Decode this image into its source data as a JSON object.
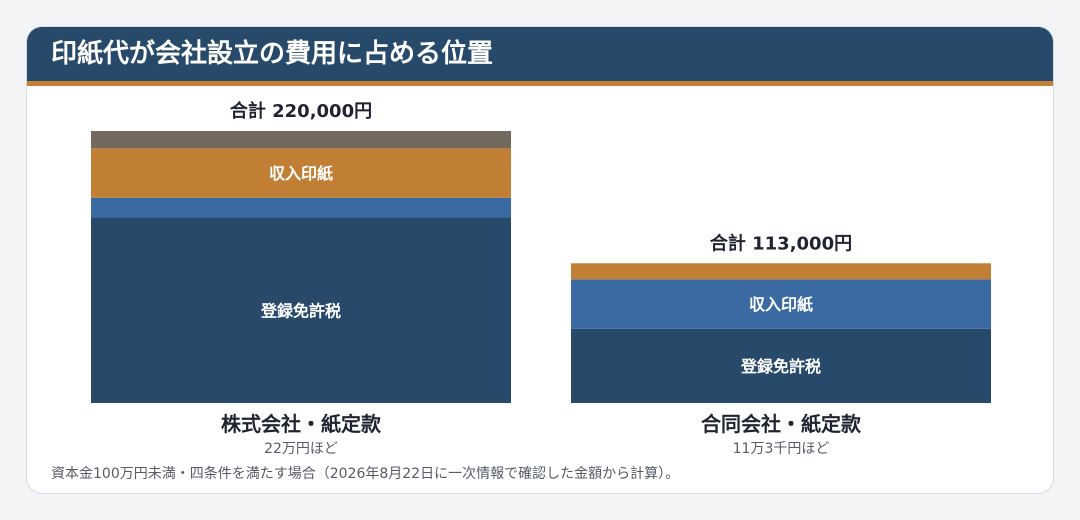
{
  "title": "印紙代が会社設立の費用に占める位置",
  "footnote": "資本金100万円未満・四条件を満たす場合（2026年8月22日に一次情報で確認した金額から計算）。",
  "colors": {
    "navy": "#27496a",
    "blue": "#3b6aa3",
    "orange": "#c17f35",
    "gray": "#736a5d",
    "label": "#ffffff",
    "text": "#1e2430",
    "subtext": "#555c66"
  },
  "chart_data": {
    "type": "bar",
    "stacked": true,
    "ylim": [
      0,
      220000
    ],
    "bars": [
      {
        "name": "株式会社・紙定款",
        "sub": "22万円ほど",
        "total_label": "合計 220,000円",
        "total": 220000,
        "segments": [
          {
            "label": "登録免許税",
            "value": 150000,
            "color": "#27496a"
          },
          {
            "label": "",
            "value": 16000,
            "color": "#3b6aa3"
          },
          {
            "label": "収入印紙",
            "value": 40000,
            "color": "#c17f35"
          },
          {
            "label": "",
            "value": 14000,
            "color": "#736a5d"
          }
        ]
      },
      {
        "name": "合同会社・紙定款",
        "sub": "11万3千円ほど",
        "total_label": "合計 113,000円",
        "total": 113000,
        "segments": [
          {
            "label": "登録免許税",
            "value": 60000,
            "color": "#27496a"
          },
          {
            "label": "収入印紙",
            "value": 40000,
            "color": "#3b6aa3"
          },
          {
            "label": "",
            "value": 13000,
            "color": "#c17f35"
          }
        ]
      }
    ]
  }
}
